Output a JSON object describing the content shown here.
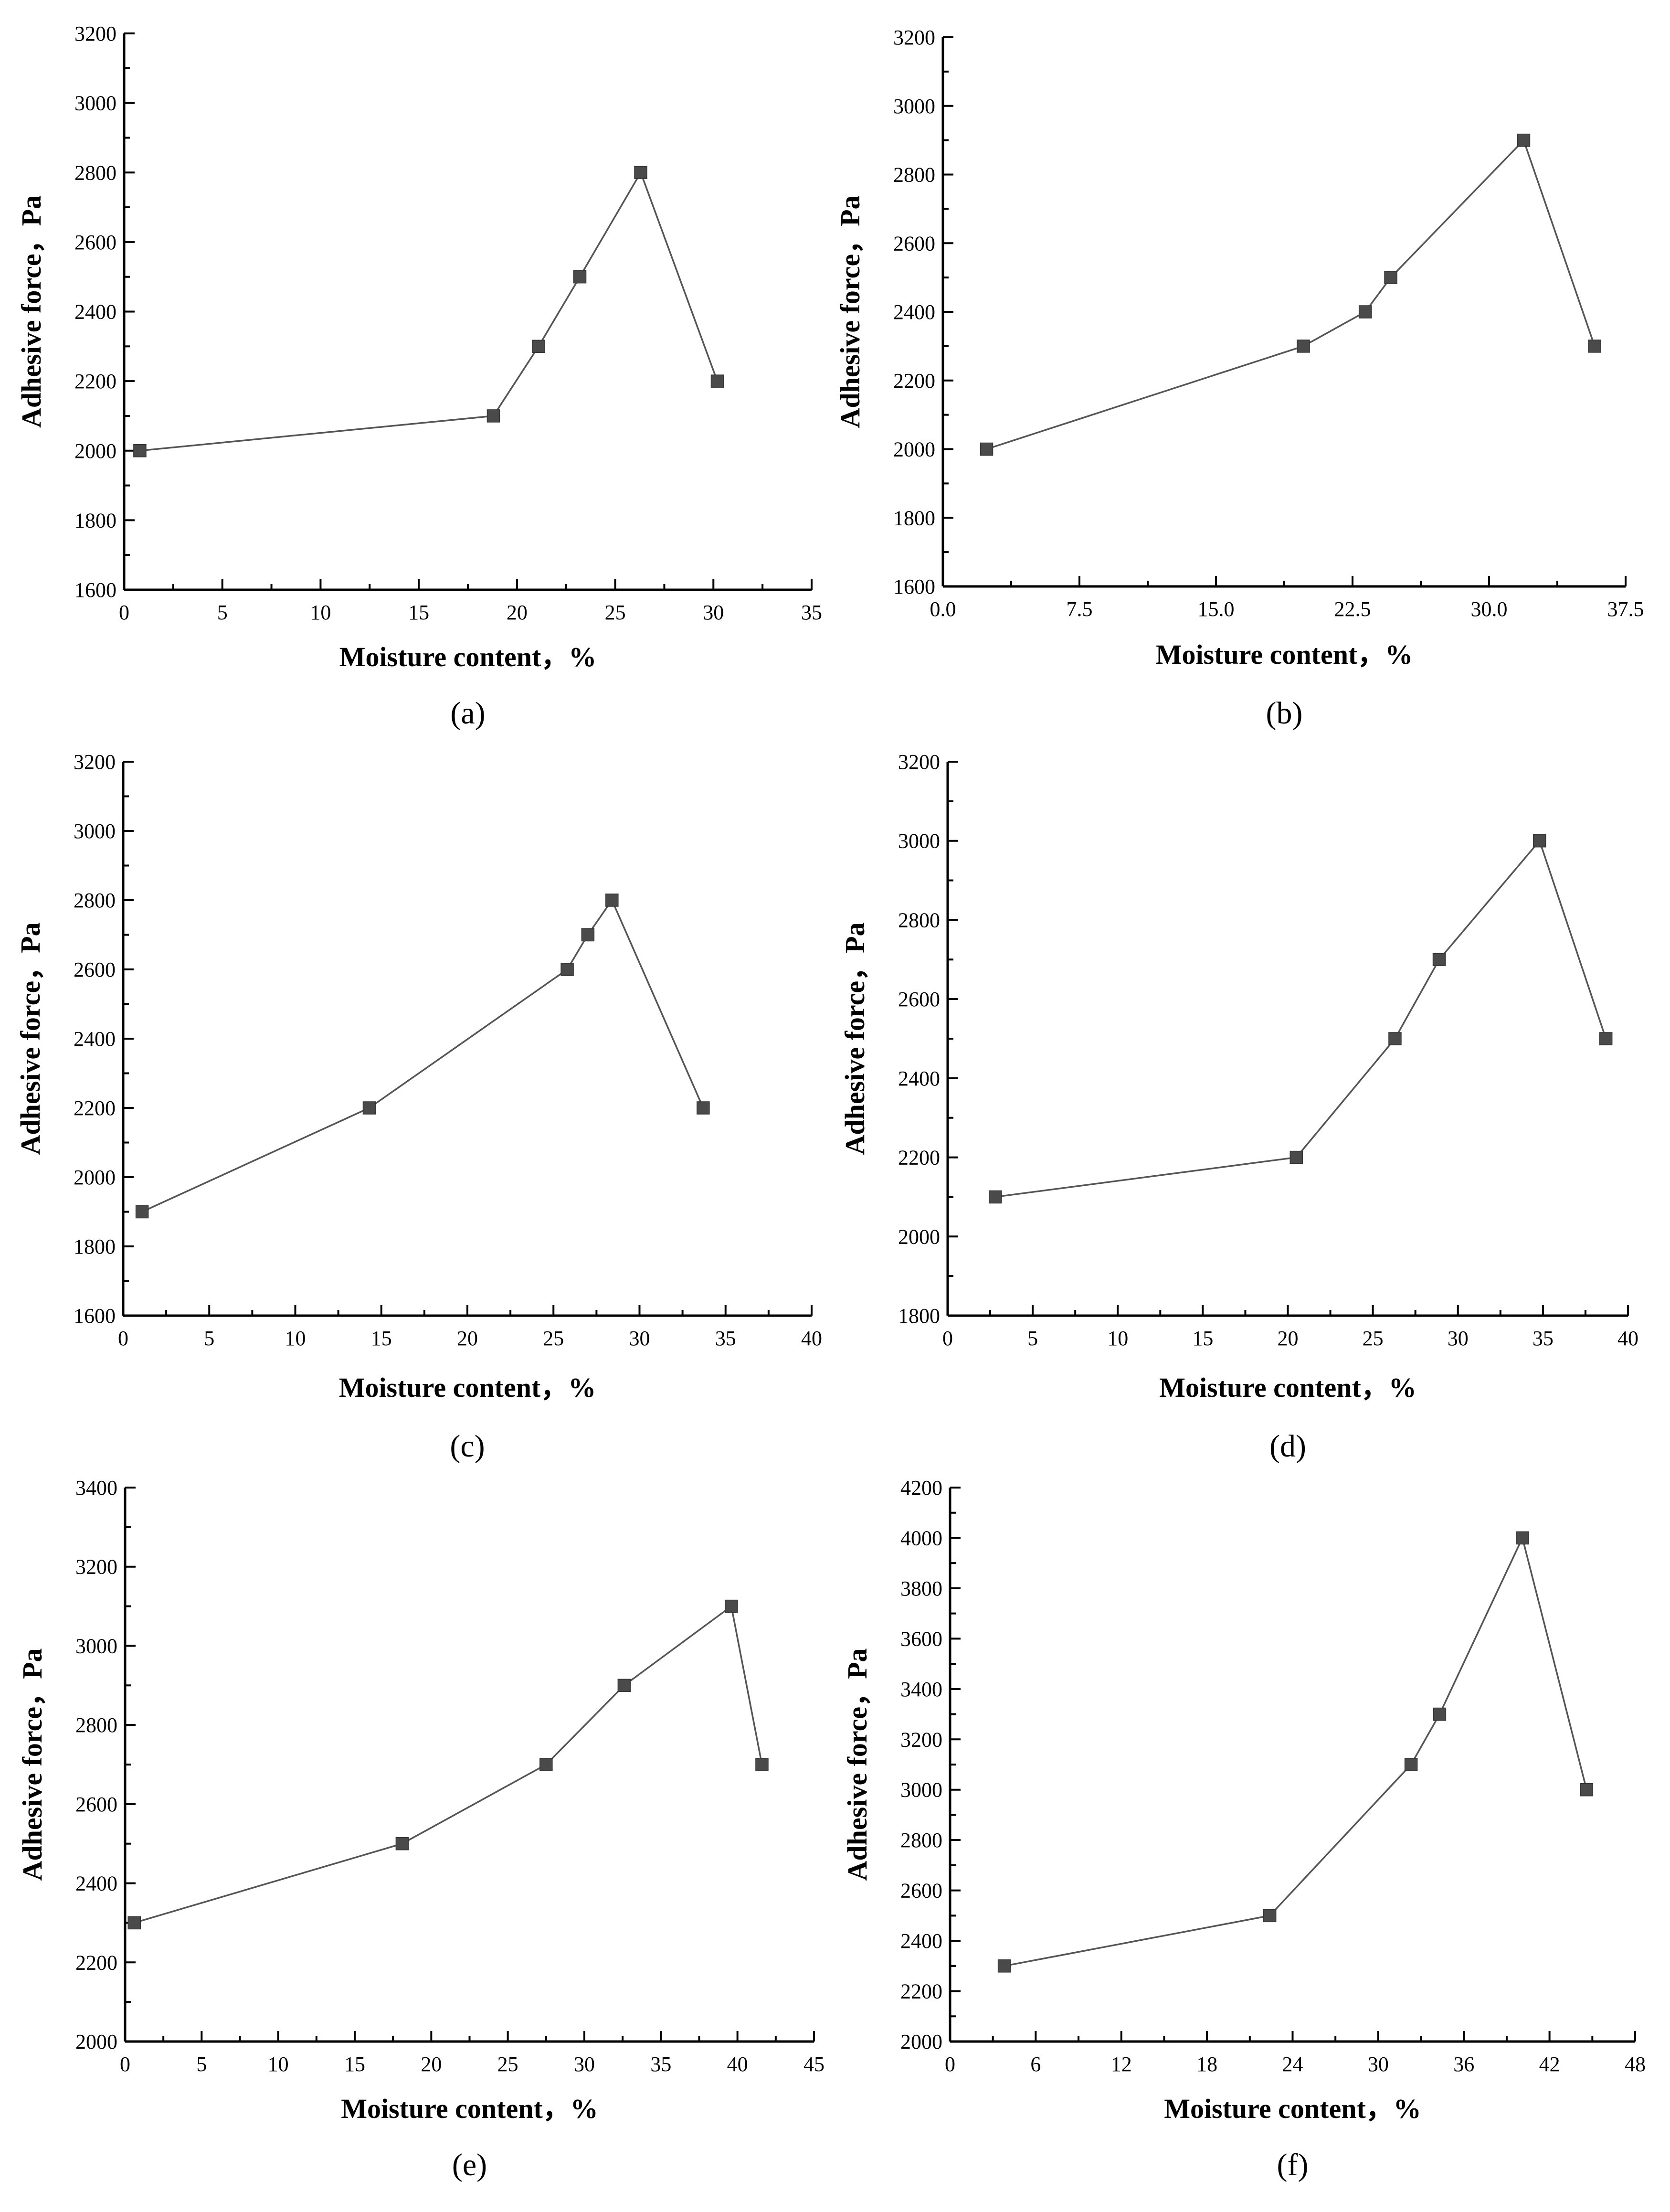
{
  "chart_data": [
    {
      "type": "line",
      "panel_label": "(a)",
      "xlabel": "Moisture content，%",
      "ylabel": "Adhesive force，Pa",
      "xlim": [
        0,
        35
      ],
      "ylim": [
        1600,
        3200
      ],
      "xticks": [
        0,
        5,
        10,
        15,
        20,
        25,
        30,
        35
      ],
      "xtick_labels": [
        "0",
        "5",
        "10",
        "15",
        "20",
        "25",
        "30",
        "35"
      ],
      "yticks": [
        1600,
        1800,
        2000,
        2200,
        2400,
        2600,
        2800,
        3000,
        3200
      ],
      "ytick_labels": [
        "1600",
        "1800",
        "2000",
        "2200",
        "2400",
        "2600",
        "2800",
        "3000",
        "3200"
      ],
      "x": [
        0.8,
        18.8,
        21.1,
        23.2,
        26.3,
        30.2
      ],
      "y": [
        2000,
        2100,
        2300,
        2500,
        2800,
        2200
      ]
    },
    {
      "type": "line",
      "panel_label": "(b)",
      "xlabel": "Moisture content，%",
      "ylabel": "Adhesive force，Pa",
      "xlim": [
        0,
        37.5
      ],
      "ylim": [
        1600,
        3200
      ],
      "xticks": [
        0,
        7.5,
        15,
        22.5,
        30,
        37.5
      ],
      "xtick_labels": [
        "0.0",
        "7.5",
        "15.0",
        "22.5",
        "30.0",
        "37.5"
      ],
      "yticks": [
        1600,
        1800,
        2000,
        2200,
        2400,
        2600,
        2800,
        3000,
        3200
      ],
      "ytick_labels": [
        "1600",
        "1800",
        "2000",
        "2200",
        "2400",
        "2600",
        "2800",
        "3000",
        "3200"
      ],
      "x": [
        2.4,
        19.8,
        23.2,
        24.6,
        31.9,
        35.8
      ],
      "y": [
        2000,
        2300,
        2400,
        2500,
        2900,
        2300
      ]
    },
    {
      "type": "line",
      "panel_label": "(c)",
      "xlabel": "Moisture content，%",
      "ylabel": "Adhesive force，Pa",
      "xlim": [
        0,
        40
      ],
      "ylim": [
        1600,
        3200
      ],
      "xticks": [
        0,
        5,
        10,
        15,
        20,
        25,
        30,
        35,
        40
      ],
      "xtick_labels": [
        "0",
        "5",
        "10",
        "15",
        "20",
        "25",
        "30",
        "35",
        "40"
      ],
      "yticks": [
        1600,
        1800,
        2000,
        2200,
        2400,
        2600,
        2800,
        3000,
        3200
      ],
      "ytick_labels": [
        "1600",
        "1800",
        "2000",
        "2200",
        "2400",
        "2600",
        "2800",
        "3000",
        "3200"
      ],
      "x": [
        1.1,
        14.3,
        25.8,
        27.0,
        28.4,
        33.7
      ],
      "y": [
        1900,
        2200,
        2600,
        2700,
        2800,
        2200
      ]
    },
    {
      "type": "line",
      "panel_label": "(d)",
      "xlabel": "Moisture content，%",
      "ylabel": "Adhesive force，Pa",
      "xlim": [
        0,
        40
      ],
      "ylim": [
        1800,
        3200
      ],
      "xticks": [
        0,
        5,
        10,
        15,
        20,
        25,
        30,
        35,
        40
      ],
      "xtick_labels": [
        "0",
        "5",
        "10",
        "15",
        "20",
        "25",
        "30",
        "35",
        "40"
      ],
      "yticks": [
        1800,
        2000,
        2200,
        2400,
        2600,
        2800,
        3000,
        3200
      ],
      "ytick_labels": [
        "1800",
        "2000",
        "2200",
        "2400",
        "2600",
        "2800",
        "3000",
        "3200"
      ],
      "x": [
        2.8,
        20.5,
        26.3,
        28.9,
        34.8,
        38.7
      ],
      "y": [
        2100,
        2200,
        2500,
        2700,
        3000,
        2500
      ]
    },
    {
      "type": "line",
      "panel_label": "(e)",
      "xlabel": "Moisture content，%",
      "ylabel": "Adhesive force，Pa",
      "xlim": [
        0,
        45
      ],
      "ylim": [
        2000,
        3400
      ],
      "xticks": [
        0,
        5,
        10,
        15,
        20,
        25,
        30,
        35,
        40,
        45
      ],
      "xtick_labels": [
        "0",
        "5",
        "10",
        "15",
        "20",
        "25",
        "30",
        "35",
        "40",
        "45"
      ],
      "yticks": [
        2000,
        2200,
        2400,
        2600,
        2800,
        3000,
        3200,
        3400
      ],
      "ytick_labels": [
        "2000",
        "2200",
        "2400",
        "2600",
        "2800",
        "3000",
        "3200",
        "3400"
      ],
      "x": [
        0.6,
        18.1,
        27.5,
        32.6,
        39.6,
        41.6
      ],
      "y": [
        2300,
        2500,
        2700,
        2900,
        3100,
        2700
      ]
    },
    {
      "type": "line",
      "panel_label": "(f)",
      "xlabel": "Moisture content，%",
      "ylabel": "Adhesive force，Pa",
      "xlim": [
        0,
        48
      ],
      "ylim": [
        2000,
        4200
      ],
      "xticks": [
        0,
        6,
        12,
        18,
        24,
        30,
        36,
        42,
        48
      ],
      "xtick_labels": [
        "0",
        "6",
        "12",
        "18",
        "24",
        "30",
        "36",
        "42",
        "48"
      ],
      "yticks": [
        2000,
        2200,
        2400,
        2600,
        2800,
        3000,
        3200,
        3400,
        3600,
        3800,
        4000,
        4200
      ],
      "ytick_labels": [
        "2000",
        "2200",
        "2400",
        "2600",
        "2800",
        "3000",
        "3200",
        "3400",
        "3600",
        "3800",
        "4000",
        "4200"
      ],
      "x": [
        3.8,
        22.4,
        32.3,
        34.3,
        40.1,
        44.6
      ],
      "y": [
        2300,
        2500,
        3100,
        3300,
        4000,
        3000
      ]
    }
  ]
}
